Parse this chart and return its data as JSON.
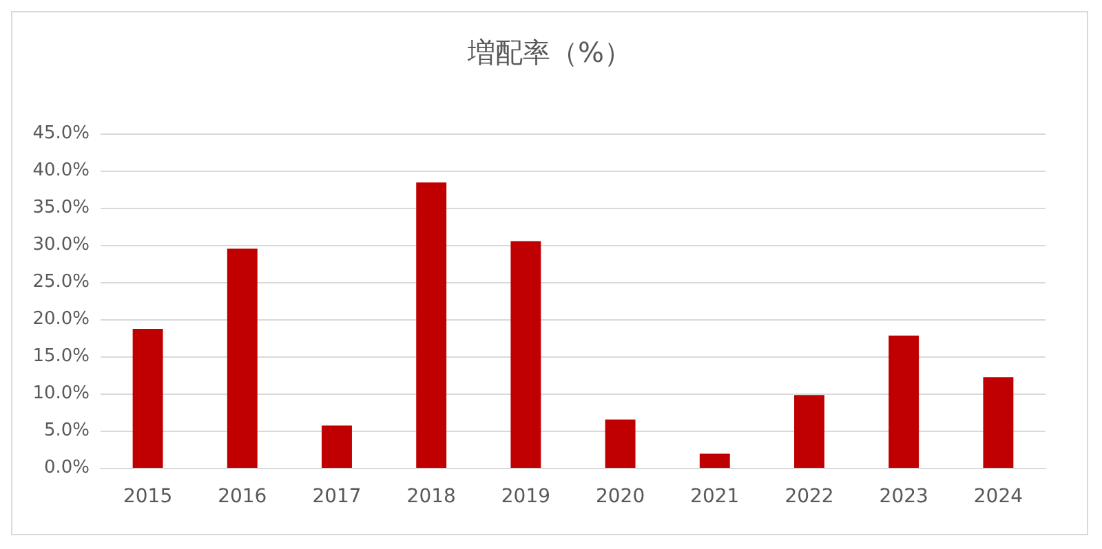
{
  "chart_data": {
    "type": "bar",
    "title": "増配率（%）",
    "categories": [
      "2015",
      "2016",
      "2017",
      "2018",
      "2019",
      "2020",
      "2021",
      "2022",
      "2023",
      "2024"
    ],
    "values": [
      18.7,
      29.5,
      5.7,
      38.4,
      30.5,
      6.5,
      1.9,
      9.8,
      17.8,
      12.2
    ],
    "color": "#c00000",
    "ylim": [
      0,
      45
    ],
    "yticks": [
      {
        "value": 0,
        "label": "0.0%"
      },
      {
        "value": 5,
        "label": "5.0%"
      },
      {
        "value": 10,
        "label": "10.0%"
      },
      {
        "value": 15,
        "label": "15.0%"
      },
      {
        "value": 20,
        "label": "20.0%"
      },
      {
        "value": 25,
        "label": "25.0%"
      },
      {
        "value": 30,
        "label": "30.0%"
      },
      {
        "value": 35,
        "label": "35.0%"
      },
      {
        "value": 40,
        "label": "40.0%"
      },
      {
        "value": 45,
        "label": "45.0%"
      }
    ],
    "grid": "y"
  }
}
